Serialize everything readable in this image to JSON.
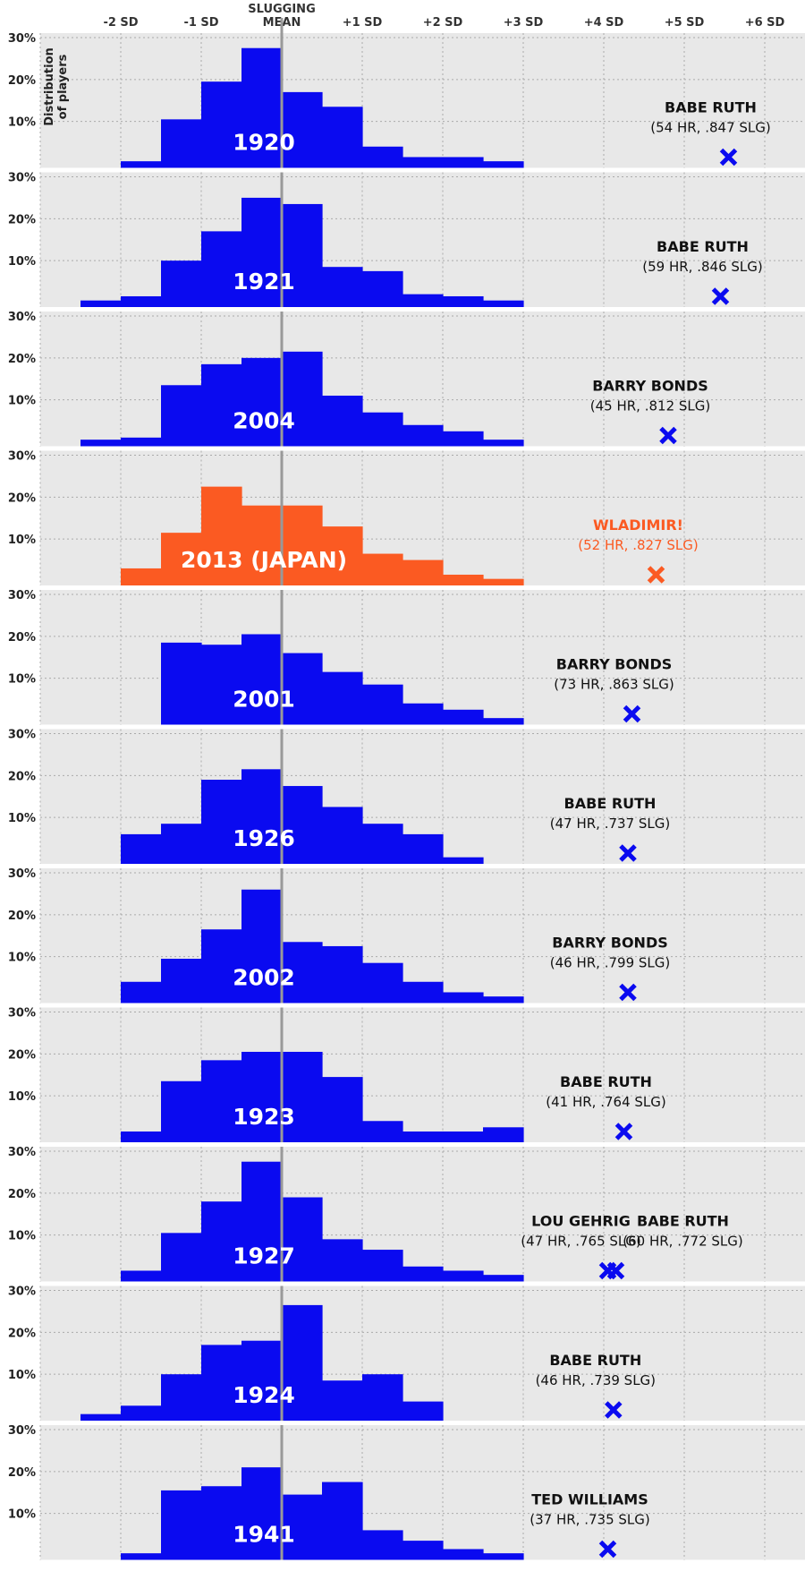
{
  "chart_data": {
    "type": "bar",
    "x_ticks_top": [
      "-2 SD",
      "-1 SD",
      "+1 SD",
      "+2 SD",
      "+3 SD",
      "+4 SD",
      "+5 SD",
      "+6 SD"
    ],
    "mean_label": [
      "SLUGGING",
      "MEAN"
    ],
    "ylabel": [
      "Distribution",
      "of players"
    ],
    "y_ticks": [
      "30%",
      "20%",
      "10%"
    ],
    "xlim": [
      -3,
      6
    ],
    "ylim": [
      0,
      30
    ],
    "bin_width_sd": 0.5,
    "bin_starts_sd": [
      -2.5,
      -2.0,
      -1.5,
      -1.0,
      -0.5,
      0.0,
      0.5,
      1.0,
      1.5,
      2.0,
      2.5,
      3.0
    ],
    "colors": {
      "mlb": "#0a0af0",
      "japan": "#fb5a22",
      "panel_bg": "#e8e8e8",
      "mean_line": "#999999",
      "grid": "#aaaaaa"
    },
    "panels": [
      {
        "year": "1920",
        "highlight": false,
        "values": [
          0,
          0.5,
          10.5,
          19.5,
          27.5,
          17,
          13.5,
          4,
          1.5,
          1.5,
          0.5,
          0
        ],
        "player": {
          "name": "BABE RUTH",
          "stats": "(54 HR, .847 SLG)",
          "sd": 5.55,
          "marker": "cross"
        }
      },
      {
        "year": "1921",
        "highlight": false,
        "values": [
          0.5,
          1.5,
          10,
          17,
          25,
          23.5,
          8.5,
          7.5,
          2,
          1.5,
          0.5,
          0
        ],
        "player": {
          "name": "BABE RUTH",
          "stats": "(59 HR, .846 SLG)",
          "sd": 5.45,
          "marker": "cross"
        }
      },
      {
        "year": "2004",
        "highlight": false,
        "values": [
          0.5,
          1,
          13.5,
          18.5,
          20,
          21.5,
          11,
          7,
          4,
          2.5,
          0.5,
          0
        ],
        "player": {
          "name": "BARRY BONDS",
          "stats": "(45 HR, .812 SLG)",
          "sd": 4.8,
          "marker": "cross"
        }
      },
      {
        "year": "2013 (JAPAN)",
        "highlight": true,
        "values": [
          0,
          3,
          11.5,
          22.5,
          18,
          18,
          13,
          6.5,
          5,
          1.5,
          0.5,
          0
        ],
        "player": {
          "name": "WLADIMIR!",
          "stats": "(52 HR, .827 SLG)",
          "sd": 4.65,
          "marker": "cross"
        }
      },
      {
        "year": "2001",
        "highlight": false,
        "values": [
          0,
          0,
          18.5,
          18,
          20.5,
          16,
          11.5,
          8.5,
          4,
          2.5,
          0.5,
          0
        ],
        "player": {
          "name": "BARRY BONDS",
          "stats": "(73 HR, .863 SLG)",
          "sd": 4.35,
          "marker": "cross"
        }
      },
      {
        "year": "1926",
        "highlight": false,
        "values": [
          0,
          6,
          8.5,
          19,
          21.5,
          17.5,
          12.5,
          8.5,
          6,
          0.5,
          0,
          0
        ],
        "player": {
          "name": "BABE RUTH",
          "stats": "(47 HR, .737 SLG)",
          "sd": 4.3,
          "marker": "cross"
        }
      },
      {
        "year": "2002",
        "highlight": false,
        "values": [
          0,
          4,
          9.5,
          16.5,
          26,
          13.5,
          12.5,
          8.5,
          4,
          1.5,
          0.5,
          0
        ],
        "player": {
          "name": "BARRY BONDS",
          "stats": "(46 HR, .799 SLG)",
          "sd": 4.3,
          "marker": "cross"
        }
      },
      {
        "year": "1923",
        "highlight": false,
        "values": [
          0,
          1.5,
          13.5,
          18.5,
          20.5,
          20.5,
          14.5,
          4,
          1.5,
          1.5,
          2.5,
          0
        ],
        "player": {
          "name": "BABE RUTH",
          "stats": "(41 HR, .764 SLG)",
          "sd": 4.25,
          "marker": "cross"
        }
      },
      {
        "year": "1927",
        "highlight": false,
        "values": [
          0,
          1.5,
          10.5,
          18,
          27.5,
          19,
          9,
          6.5,
          2.5,
          1.5,
          0.5,
          0
        ],
        "player": {
          "name": "LOU GEHRIG",
          "stats": "(47 HR, .765 SLG)",
          "sd": 4.05,
          "marker": "cross"
        },
        "player2": {
          "name": "BABE RUTH",
          "stats": "(60 HR, .772 SLG)",
          "sd": 4.15,
          "marker": "cross"
        }
      },
      {
        "year": "1924",
        "highlight": false,
        "values": [
          0.5,
          2.5,
          10,
          17,
          18,
          26.5,
          8.5,
          10,
          3.5,
          0,
          0,
          0
        ],
        "player": {
          "name": "BABE RUTH",
          "stats": "(46 HR, .739 SLG)",
          "sd": 4.12,
          "marker": "cross"
        }
      },
      {
        "year": "1941",
        "highlight": false,
        "values": [
          0,
          0.5,
          15.5,
          16.5,
          21,
          14.5,
          17.5,
          6,
          3.5,
          1.5,
          0.5,
          0
        ],
        "player": {
          "name": "TED WILLIAMS",
          "stats": "(37 HR, .735 SLG)",
          "sd": 4.05,
          "marker": "cross"
        }
      }
    ]
  }
}
